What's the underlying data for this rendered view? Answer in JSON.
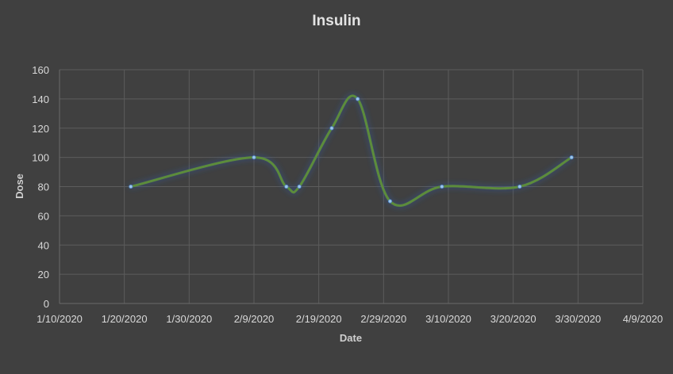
{
  "chart_data": {
    "type": "line",
    "title": "Insulin",
    "xlabel": "Date",
    "ylabel": "Dose",
    "x_ticks": [
      "1/10/2020",
      "1/20/2020",
      "1/30/2020",
      "2/9/2020",
      "2/19/2020",
      "2/29/2020",
      "3/10/2020",
      "3/20/2020",
      "3/30/2020",
      "4/9/2020"
    ],
    "y_ticks": [
      "0",
      "20",
      "40",
      "60",
      "80",
      "100",
      "120",
      "140",
      "160"
    ],
    "xlim": [
      "2020-01-10",
      "2020-04-09"
    ],
    "ylim": [
      0,
      160
    ],
    "grid": true,
    "smooth": true,
    "series": [
      {
        "color": "#5b8c3a",
        "points": [
          {
            "x": "2020-01-21",
            "y": 80
          },
          {
            "x": "2020-02-09",
            "y": 100
          },
          {
            "x": "2020-02-14",
            "y": 80
          },
          {
            "x": "2020-02-16",
            "y": 80
          },
          {
            "x": "2020-02-21",
            "y": 120
          },
          {
            "x": "2020-02-25",
            "y": 140
          },
          {
            "x": "2020-03-01",
            "y": 70
          },
          {
            "x": "2020-03-09",
            "y": 80
          },
          {
            "x": "2020-03-21",
            "y": 80
          },
          {
            "x": "2020-03-29",
            "y": 100
          }
        ]
      }
    ]
  }
}
